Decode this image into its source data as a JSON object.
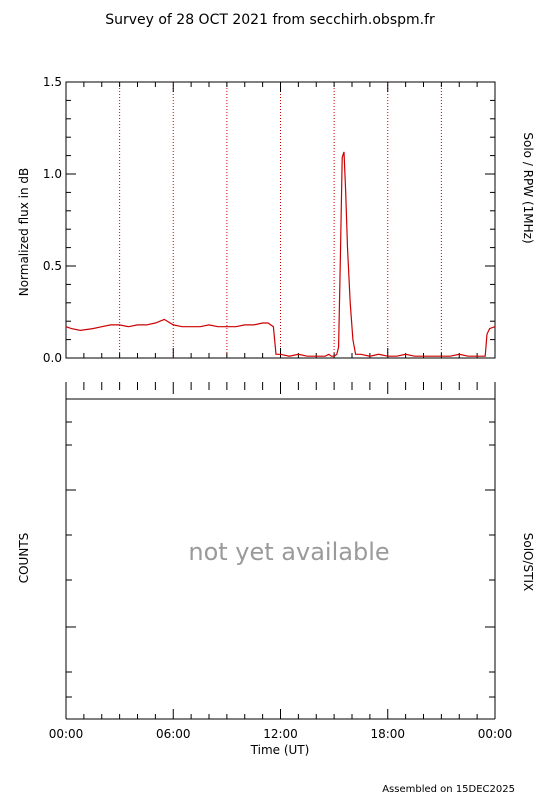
{
  "title": "Survey of 28 OCT 2021 from secchirh.obspm.fr",
  "footer": "Assembled on 15DEC2025",
  "x_axis": {
    "label": "Time (UT)",
    "tick_labels": [
      "00:00",
      "06:00",
      "12:00",
      "18:00",
      "00:00"
    ]
  },
  "colors": {
    "series": "#cc0000",
    "axis": "#000000",
    "placeholder": "#9a9a9a"
  },
  "chart_data": [
    {
      "type": "line",
      "ylabel": "Normalized flux in dB",
      "side_label": "Solo / RPW (1MHz)",
      "xlim": [
        0,
        24
      ],
      "ylim": [
        0,
        1.5
      ],
      "y_ticks": [
        0.0,
        0.5,
        1.0,
        1.5
      ],
      "y_tick_labels": [
        "0.0",
        "0.5",
        "1.0",
        "1.5"
      ],
      "vertical_guides_hours": [
        3,
        6,
        9,
        12,
        15,
        18,
        21
      ],
      "grid": false,
      "series": [
        {
          "x": [
            0,
            0.3,
            0.8,
            1.5,
            2.0,
            2.5,
            3.0,
            3.5,
            4.0,
            4.5,
            5.0,
            5.5,
            6.0,
            6.5,
            7.0,
            7.5,
            8.0,
            8.5,
            9.0,
            9.5,
            10.0,
            10.5,
            11.0,
            11.3,
            11.6,
            11.75,
            11.85,
            12.0,
            12.5,
            13.0,
            13.5,
            14.0,
            14.5,
            14.7,
            14.85,
            15.0,
            15.15,
            15.25,
            15.35,
            15.45,
            15.55,
            15.65,
            15.75,
            15.9,
            16.05,
            16.2,
            16.5,
            17.0,
            17.5,
            18.0,
            18.5,
            19.0,
            19.5,
            20.0,
            20.5,
            21.0,
            21.5,
            22.0,
            22.5,
            23.0,
            23.3,
            23.45,
            23.55,
            23.7,
            24.0
          ],
          "y": [
            0.17,
            0.16,
            0.15,
            0.16,
            0.17,
            0.18,
            0.18,
            0.17,
            0.18,
            0.18,
            0.19,
            0.21,
            0.18,
            0.17,
            0.17,
            0.17,
            0.18,
            0.17,
            0.17,
            0.17,
            0.18,
            0.18,
            0.19,
            0.19,
            0.17,
            0.02,
            0.02,
            0.02,
            0.01,
            0.02,
            0.01,
            0.01,
            0.01,
            0.02,
            0.01,
            0.01,
            0.02,
            0.06,
            0.55,
            1.09,
            1.12,
            0.9,
            0.6,
            0.3,
            0.1,
            0.02,
            0.02,
            0.01,
            0.02,
            0.01,
            0.01,
            0.02,
            0.01,
            0.01,
            0.01,
            0.01,
            0.01,
            0.02,
            0.01,
            0.01,
            0.01,
            0.01,
            0.13,
            0.16,
            0.17
          ]
        }
      ]
    },
    {
      "type": "line",
      "ylabel": "COUNTS",
      "side_label": "SolO/STIX",
      "placeholder_text": "not yet available",
      "xlim": [
        0,
        24
      ],
      "series": []
    }
  ]
}
